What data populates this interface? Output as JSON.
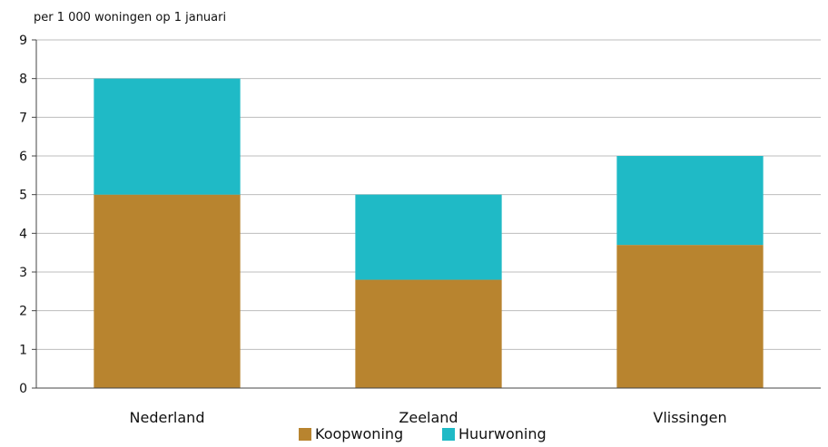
{
  "chart_data": {
    "type": "bar",
    "stacked": true,
    "unit_label": "per 1 000 woningen op 1 januari",
    "categories": [
      "Nederland",
      "Zeeland",
      "Vlissingen"
    ],
    "series": [
      {
        "name": "Koopwoning",
        "color": "#b8842f",
        "values": [
          5.0,
          2.8,
          3.7
        ]
      },
      {
        "name": "Huurwoning",
        "color": "#1fbac6",
        "values": [
          3.0,
          2.2,
          2.3
        ]
      }
    ],
    "ylim": [
      0,
      9
    ],
    "yticks": [
      "0",
      "1",
      "2",
      "3",
      "4",
      "5",
      "6",
      "7",
      "8",
      "9"
    ],
    "grid": true,
    "legend_position": "bottom"
  }
}
